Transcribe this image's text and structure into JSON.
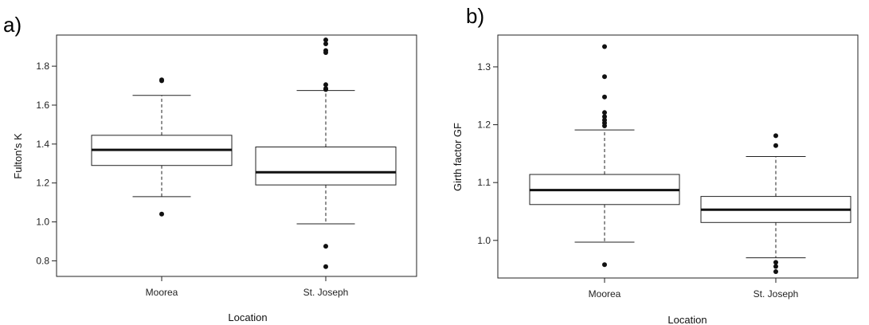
{
  "chart_data": [
    {
      "panel_label": "a)",
      "type": "boxplot",
      "xlabel": "Location",
      "ylabel": "Fulton's K",
      "ylim": [
        0.72,
        1.96
      ],
      "yticks": [
        0.8,
        1.0,
        1.2,
        1.4,
        1.6,
        1.8
      ],
      "ytick_labels": [
        "0.8",
        "1.0",
        "1.2",
        "1.4",
        "1.6",
        "1.8"
      ],
      "grid": false,
      "categories": [
        "Moorea",
        "St. Joseph"
      ],
      "boxes": [
        {
          "category": "Moorea",
          "whisker_low": 1.13,
          "q1": 1.29,
          "median": 1.37,
          "q3": 1.445,
          "whisker_high": 1.65,
          "outliers": [
            1.73,
            1.725,
            1.04
          ]
        },
        {
          "category": "St. Joseph",
          "whisker_low": 0.99,
          "q1": 1.19,
          "median": 1.255,
          "q3": 1.385,
          "whisker_high": 1.675,
          "outliers": [
            1.935,
            1.915,
            1.88,
            1.87,
            1.705,
            1.685,
            1.68,
            0.875,
            0.77
          ]
        }
      ]
    },
    {
      "panel_label": "b)",
      "type": "boxplot",
      "xlabel": "Location",
      "ylabel": "Girth factor GF",
      "ylim": [
        0.935,
        1.355
      ],
      "yticks": [
        1.0,
        1.1,
        1.2,
        1.3
      ],
      "ytick_labels": [
        "1.0",
        "1.1",
        "1.2",
        "1.3"
      ],
      "grid": false,
      "categories": [
        "Moorea",
        "St. Joseph"
      ],
      "boxes": [
        {
          "category": "Moorea",
          "whisker_low": 0.997,
          "q1": 1.062,
          "median": 1.087,
          "q3": 1.114,
          "whisker_high": 1.191,
          "outliers": [
            1.335,
            1.283,
            1.248,
            1.221,
            1.214,
            1.208,
            1.203,
            1.198,
            0.958
          ]
        },
        {
          "category": "St. Joseph",
          "whisker_low": 0.97,
          "q1": 1.031,
          "median": 1.053,
          "q3": 1.076,
          "whisker_high": 1.145,
          "outliers": [
            1.181,
            1.164,
            0.962,
            0.955,
            0.946
          ]
        }
      ]
    }
  ]
}
